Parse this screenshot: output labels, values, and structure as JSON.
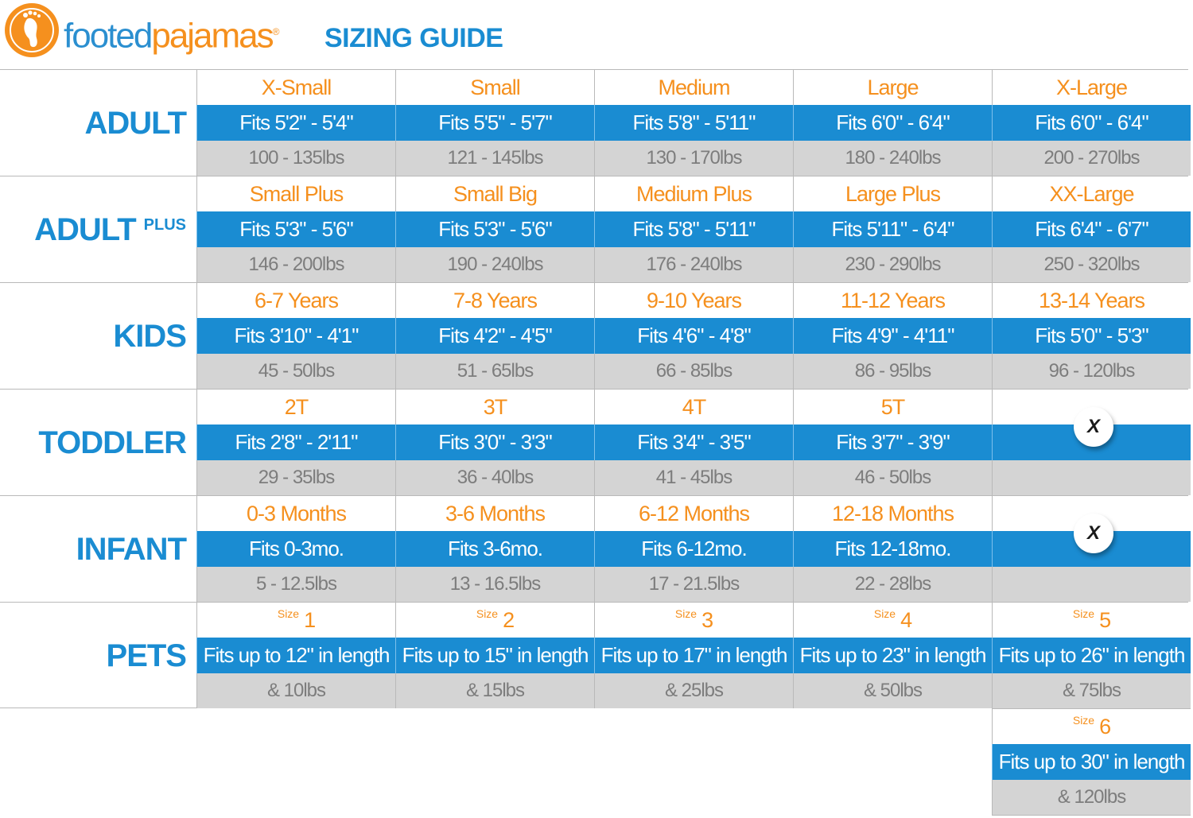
{
  "brand": {
    "part1": "footed",
    "part2": "pajamas",
    "reg": "®",
    "subtitle": "SIZING GUIDE"
  },
  "sections": [
    {
      "label": "ADULT",
      "label_sup": "",
      "cells": [
        {
          "size": "X-Small",
          "fit": "Fits 5'2\" - 5'4\"",
          "weight": "100 - 135lbs"
        },
        {
          "size": "Small",
          "fit": "Fits 5'5\" - 5'7\"",
          "weight": "121 - 145lbs"
        },
        {
          "size": "Medium",
          "fit": "Fits 5'8\" - 5'11\"",
          "weight": "130 - 170lbs"
        },
        {
          "size": "Large",
          "fit": "Fits 6'0\" - 6'4\"",
          "weight": "180 - 240lbs"
        },
        {
          "size": "X-Large",
          "fit": "Fits 6'0\" - 6'4\"",
          "weight": "200 - 270lbs"
        }
      ]
    },
    {
      "label": "ADULT",
      "label_sup": "PLUS",
      "cells": [
        {
          "size": "Small Plus",
          "fit": "Fits 5'3\" - 5'6\"",
          "weight": "146 - 200lbs"
        },
        {
          "size": "Small Big",
          "fit": "Fits 5'3\" - 5'6\"",
          "weight": "190 - 240lbs"
        },
        {
          "size": "Medium Plus",
          "fit": "Fits 5'8\" - 5'11\"",
          "weight": "176 - 240lbs"
        },
        {
          "size": "Large Plus",
          "fit": "Fits 5'11\" - 6'4\"",
          "weight": "230 - 290lbs"
        },
        {
          "size": "XX-Large",
          "fit": "Fits 6'4\" - 6'7\"",
          "weight": "250 - 320lbs"
        }
      ]
    },
    {
      "label": "KIDS",
      "label_sup": "",
      "cells": [
        {
          "size": "6-7 Years",
          "fit": "Fits 3'10\" - 4'1\"",
          "weight": "45 - 50lbs"
        },
        {
          "size": "7-8 Years",
          "fit": "Fits 4'2\" - 4'5\"",
          "weight": "51 - 65lbs"
        },
        {
          "size": "9-10 Years",
          "fit": "Fits 4'6\" - 4'8\"",
          "weight": "66 - 85lbs"
        },
        {
          "size": "11-12 Years",
          "fit": "Fits 4'9\" - 4'11\"",
          "weight": "86 - 95lbs"
        },
        {
          "size": "13-14 Years",
          "fit": "Fits 5'0\" - 5'3\"",
          "weight": "96 - 120lbs"
        }
      ]
    },
    {
      "label": "TODDLER",
      "label_sup": "",
      "cells": [
        {
          "size": "2T",
          "fit": "Fits 2'8\" - 2'11\"",
          "weight": "29 - 35lbs"
        },
        {
          "size": "3T",
          "fit": "Fits 3'0\" - 3'3\"",
          "weight": "36 - 40lbs"
        },
        {
          "size": "4T",
          "fit": "Fits 3'4\" - 3'5\"",
          "weight": "41 - 45lbs"
        },
        {
          "size": "5T",
          "fit": "Fits 3'7\" - 3'9\"",
          "weight": "46 - 50lbs"
        },
        {
          "unavailable": "X"
        }
      ]
    },
    {
      "label": "INFANT",
      "label_sup": "",
      "cells": [
        {
          "size": "0-3 Months",
          "fit": "Fits 0-3mo.",
          "weight": "5 - 12.5lbs"
        },
        {
          "size": "3-6 Months",
          "fit": "Fits 3-6mo.",
          "weight": "13 - 16.5lbs"
        },
        {
          "size": "6-12 Months",
          "fit": "Fits 6-12mo.",
          "weight": "17 - 21.5lbs"
        },
        {
          "size": "12-18 Months",
          "fit": "Fits 12-18mo.",
          "weight": "22 - 28lbs"
        },
        {
          "unavailable": "X"
        }
      ]
    },
    {
      "label": "PETS",
      "label_sup": "",
      "cells": [
        {
          "size_prefix": "Size",
          "size": "1",
          "fit": "Fits up to 12\" in length",
          "weight": "& 10lbs"
        },
        {
          "size_prefix": "Size",
          "size": "2",
          "fit": "Fits up to 15\" in length",
          "weight": "& 15lbs"
        },
        {
          "size_prefix": "Size",
          "size": "3",
          "fit": "Fits up to 17\" in length",
          "weight": "& 25lbs"
        },
        {
          "size_prefix": "Size",
          "size": "4",
          "fit": "Fits up to 23\" in length",
          "weight": "& 50lbs"
        },
        {
          "size_prefix": "Size",
          "size": "5",
          "fit": "Fits up to 26\" in length",
          "weight": "& 75lbs"
        }
      ]
    }
  ],
  "extra_pet": {
    "size_prefix": "Size",
    "size": "6",
    "fit": "Fits up to 30\" in length",
    "weight": "& 120lbs"
  },
  "colors": {
    "blue": "#1a8cd2",
    "orange": "#f5901e",
    "gray": "#d4d4d4"
  }
}
